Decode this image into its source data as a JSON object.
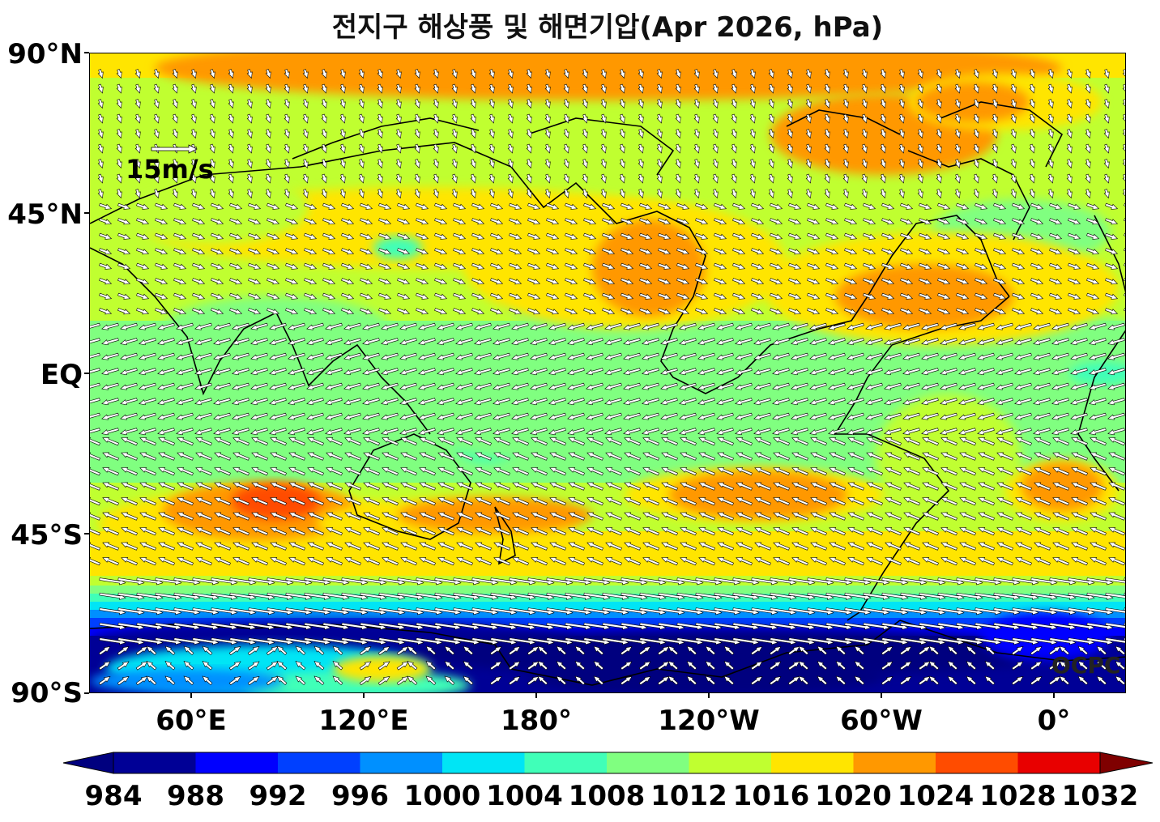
{
  "title": "전지구 해상풍 및 해면기압(Apr 2026, hPa)",
  "map": {
    "lat_labels": [
      "90°N",
      "45°N",
      "EQ",
      "45°S",
      "90°S"
    ],
    "lon_labels": [
      "60°E",
      "120°E",
      "180°",
      "120°W",
      "60°W",
      "0°"
    ],
    "lon_range": [
      25,
      385
    ],
    "lat_range": [
      -90,
      90
    ],
    "reference_vector": {
      "label": "15m/s",
      "speed": 15
    },
    "credit": "OCPC",
    "field": "mean sea level pressure (hPa) with surface wind vectors"
  },
  "colorbar": {
    "levels": [
      "984",
      "988",
      "992",
      "996",
      "1000",
      "1004",
      "1008",
      "1012",
      "1016",
      "1020",
      "1024",
      "1028",
      "1032"
    ],
    "colors": [
      "#00007f",
      "#000096",
      "#0000ff",
      "#0040ff",
      "#0090ff",
      "#00e5f5",
      "#40ffb8",
      "#80ff80",
      "#c0ff30",
      "#ffe500",
      "#ff9800",
      "#ff4c00",
      "#e80000",
      "#7f0000"
    ],
    "extend": "both"
  }
}
